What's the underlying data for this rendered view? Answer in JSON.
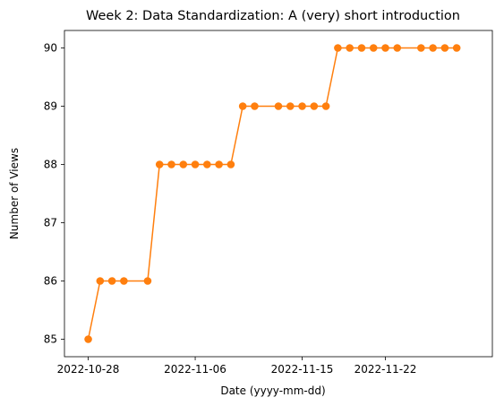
{
  "chart_data": {
    "type": "line",
    "title": "Week 2: Data Standardization: A (very) short introduction",
    "xlabel": "Date (yyyy-mm-dd)",
    "ylabel": "Number of Views",
    "xlim": [
      "2022-10-26",
      "2022-12-01"
    ],
    "ylim": [
      84.7,
      90.3
    ],
    "xticks": [
      "2022-10-28",
      "2022-11-06",
      "2022-11-15",
      "2022-11-22"
    ],
    "yticks": [
      85,
      86,
      87,
      88,
      89,
      90
    ],
    "grid": false,
    "legend": false,
    "series": [
      {
        "color": "#ff7f0e",
        "marker": "circle",
        "points": [
          {
            "x": "2022-10-28",
            "y": 85
          },
          {
            "x": "2022-10-29",
            "y": 86
          },
          {
            "x": "2022-10-30",
            "y": 86
          },
          {
            "x": "2022-10-31",
            "y": 86
          },
          {
            "x": "2022-11-02",
            "y": 86
          },
          {
            "x": "2022-11-03",
            "y": 88
          },
          {
            "x": "2022-11-04",
            "y": 88
          },
          {
            "x": "2022-11-05",
            "y": 88
          },
          {
            "x": "2022-11-06",
            "y": 88
          },
          {
            "x": "2022-11-07",
            "y": 88
          },
          {
            "x": "2022-11-08",
            "y": 88
          },
          {
            "x": "2022-11-09",
            "y": 88
          },
          {
            "x": "2022-11-10",
            "y": 89
          },
          {
            "x": "2022-11-11",
            "y": 89
          },
          {
            "x": "2022-11-13",
            "y": 89
          },
          {
            "x": "2022-11-14",
            "y": 89
          },
          {
            "x": "2022-11-15",
            "y": 89
          },
          {
            "x": "2022-11-16",
            "y": 89
          },
          {
            "x": "2022-11-17",
            "y": 89
          },
          {
            "x": "2022-11-18",
            "y": 90
          },
          {
            "x": "2022-11-19",
            "y": 90
          },
          {
            "x": "2022-11-20",
            "y": 90
          },
          {
            "x": "2022-11-21",
            "y": 90
          },
          {
            "x": "2022-11-22",
            "y": 90
          },
          {
            "x": "2022-11-23",
            "y": 90
          },
          {
            "x": "2022-11-25",
            "y": 90
          },
          {
            "x": "2022-11-26",
            "y": 90
          },
          {
            "x": "2022-11-27",
            "y": 90
          },
          {
            "x": "2022-11-28",
            "y": 90
          }
        ]
      }
    ]
  }
}
